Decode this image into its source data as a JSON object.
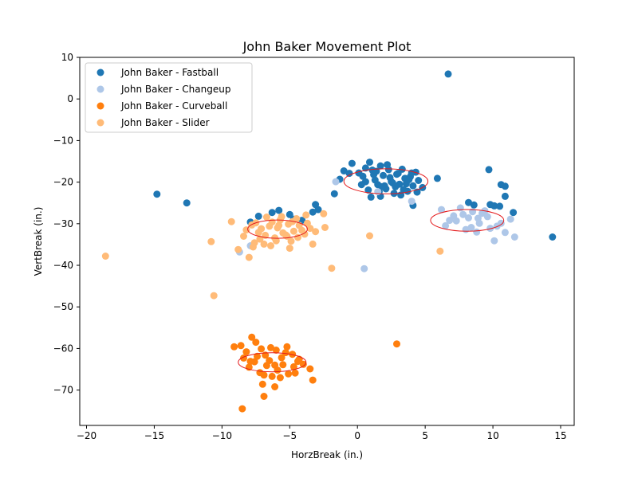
{
  "chart_data": {
    "type": "scatter",
    "title": "John Baker Movement Plot",
    "xlabel": "HorzBreak (in.)",
    "ylabel": "VertBreak (in.)",
    "xlim": [
      -20.5,
      16.0
    ],
    "ylim": [
      -78.5,
      10.0
    ],
    "xticks": [
      -20,
      -15,
      -10,
      -5,
      0,
      5,
      10,
      15
    ],
    "yticks": [
      10,
      0,
      -10,
      -20,
      -30,
      -40,
      -50,
      -60,
      -70
    ],
    "grid": false,
    "legend_position": "top-left",
    "ellipse_color": "#e41a1c",
    "series": [
      {
        "name": "John Baker - Fastball",
        "color": "#1f77b4",
        "ellipse": {
          "cx": 2.1,
          "cy": -19.8,
          "rx": 3.1,
          "ry": 3.0
        },
        "points": [
          [
            6.7,
            6.0
          ],
          [
            -14.8,
            -22.9
          ],
          [
            -12.6,
            -25.0
          ],
          [
            14.4,
            -33.2
          ],
          [
            9.7,
            -17.0
          ],
          [
            10.6,
            -20.6
          ],
          [
            10.9,
            -21.0
          ],
          [
            10.9,
            -23.4
          ],
          [
            11.5,
            -27.3
          ],
          [
            10.1,
            -25.7
          ],
          [
            10.5,
            -25.8
          ],
          [
            9.8,
            -25.4
          ],
          [
            8.2,
            -24.9
          ],
          [
            8.6,
            -25.5
          ],
          [
            5.9,
            -19.1
          ],
          [
            4.1,
            -25.6
          ],
          [
            -1.7,
            -22.8
          ],
          [
            -1.3,
            -19.3
          ],
          [
            -1.0,
            -17.3
          ],
          [
            -0.6,
            -17.9
          ],
          [
            -0.4,
            -15.5
          ],
          [
            0.1,
            -17.8
          ],
          [
            0.4,
            -18.6
          ],
          [
            0.6,
            -19.9
          ],
          [
            0.9,
            -15.2
          ],
          [
            1.1,
            -17.1
          ],
          [
            1.3,
            -19.5
          ],
          [
            1.5,
            -20.6
          ],
          [
            1.7,
            -16.1
          ],
          [
            1.9,
            -18.4
          ],
          [
            2.1,
            -21.6
          ],
          [
            2.3,
            -17.0
          ],
          [
            2.5,
            -19.9
          ],
          [
            2.7,
            -22.7
          ],
          [
            2.9,
            -18.1
          ],
          [
            3.1,
            -20.5
          ],
          [
            3.3,
            -16.9
          ],
          [
            3.5,
            -19.1
          ],
          [
            3.7,
            -22.2
          ],
          [
            3.9,
            -18.7
          ],
          [
            4.1,
            -20.9
          ],
          [
            4.3,
            -17.6
          ],
          [
            4.5,
            -19.6
          ],
          [
            4.8,
            -21.3
          ],
          [
            0.3,
            -20.6
          ],
          [
            0.8,
            -21.9
          ],
          [
            1.2,
            -18.2
          ],
          [
            1.6,
            -22.3
          ],
          [
            2.0,
            -20.9
          ],
          [
            2.4,
            -18.9
          ],
          [
            2.8,
            -21.1
          ],
          [
            3.2,
            -23.1
          ],
          [
            3.6,
            -20.4
          ],
          [
            4.0,
            -17.8
          ],
          [
            0.6,
            -16.6
          ],
          [
            1.0,
            -23.6
          ],
          [
            1.4,
            -17.4
          ],
          [
            1.8,
            -21.1
          ],
          [
            2.2,
            -15.8
          ],
          [
            2.6,
            -20.2
          ],
          [
            3.0,
            -17.9
          ],
          [
            3.4,
            -21.8
          ],
          [
            3.8,
            -19.4
          ],
          [
            4.4,
            -22.4
          ],
          [
            1.7,
            -23.4
          ],
          [
            -6.3,
            -27.3
          ],
          [
            -5.8,
            -26.8
          ],
          [
            -3.1,
            -25.4
          ],
          [
            -2.9,
            -26.6
          ],
          [
            -7.9,
            -29.6
          ],
          [
            -4.1,
            -29.2
          ],
          [
            -3.3,
            -27.2
          ],
          [
            -5.0,
            -27.8
          ],
          [
            -7.3,
            -28.2
          ],
          [
            -4.7,
            -28.9
          ]
        ]
      },
      {
        "name": "John Baker - Changeup",
        "color": "#aec7e8",
        "ellipse": {
          "cx": 8.1,
          "cy": -29.2,
          "rx": 2.7,
          "ry": 2.6
        },
        "points": [
          [
            11.6,
            -33.2
          ],
          [
            10.1,
            -34.1
          ],
          [
            10.9,
            -32.1
          ],
          [
            11.3,
            -28.9
          ],
          [
            6.2,
            -26.6
          ],
          [
            6.5,
            -30.5
          ],
          [
            7.1,
            -28.1
          ],
          [
            7.6,
            -26.2
          ],
          [
            8.0,
            -31.4
          ],
          [
            8.5,
            -27.1
          ],
          [
            9.0,
            -29.9
          ],
          [
            9.4,
            -26.9
          ],
          [
            9.8,
            -31.1
          ],
          [
            8.2,
            -28.6
          ],
          [
            7.3,
            -29.3
          ],
          [
            8.8,
            -32.0
          ],
          [
            9.6,
            -28.3
          ],
          [
            10.3,
            -30.6
          ],
          [
            7.8,
            -27.8
          ],
          [
            8.4,
            -30.9
          ],
          [
            9.2,
            -27.5
          ],
          [
            6.8,
            -29.2
          ],
          [
            10.6,
            -29.9
          ],
          [
            8.9,
            -28.7
          ],
          [
            1.5,
            -22.3
          ],
          [
            4.0,
            -24.6
          ],
          [
            -1.6,
            -19.9
          ],
          [
            0.5,
            -40.8
          ],
          [
            -8.7,
            -36.8
          ],
          [
            -7.9,
            -35.3
          ]
        ]
      },
      {
        "name": "John Baker - Curveball",
        "color": "#ff7f0e",
        "ellipse": {
          "cx": -6.3,
          "cy": -63.3,
          "rx": 2.5,
          "ry": 2.3
        },
        "points": [
          [
            2.9,
            -58.9
          ],
          [
            -8.5,
            -74.5
          ],
          [
            -6.9,
            -71.5
          ],
          [
            -3.3,
            -67.6
          ],
          [
            -6.1,
            -69.2
          ],
          [
            -7.0,
            -68.6
          ],
          [
            -9.1,
            -59.6
          ],
          [
            -8.6,
            -59.3
          ],
          [
            -8.2,
            -60.8
          ],
          [
            -7.8,
            -57.3
          ],
          [
            -7.5,
            -58.5
          ],
          [
            -7.1,
            -60.1
          ],
          [
            -6.8,
            -61.6
          ],
          [
            -6.4,
            -59.8
          ],
          [
            -6.0,
            -60.4
          ],
          [
            -5.6,
            -62.2
          ],
          [
            -5.2,
            -59.6
          ],
          [
            -4.8,
            -61.4
          ],
          [
            -4.4,
            -63.1
          ],
          [
            -4.0,
            -63.8
          ],
          [
            -3.5,
            -64.9
          ],
          [
            -8.4,
            -62.3
          ],
          [
            -8.0,
            -64.5
          ],
          [
            -7.6,
            -63.2
          ],
          [
            -7.2,
            -65.8
          ],
          [
            -6.7,
            -64.1
          ],
          [
            -6.3,
            -66.7
          ],
          [
            -5.9,
            -65.2
          ],
          [
            -5.5,
            -63.9
          ],
          [
            -5.1,
            -66.1
          ],
          [
            -4.7,
            -64.4
          ],
          [
            -6.5,
            -62.9
          ],
          [
            -7.4,
            -61.9
          ],
          [
            -5.3,
            -61.0
          ],
          [
            -6.1,
            -64.0
          ],
          [
            -7.9,
            -63.1
          ],
          [
            -4.6,
            -65.9
          ],
          [
            -6.9,
            -66.4
          ],
          [
            -5.7,
            -67.0
          ],
          [
            -4.3,
            -62.6
          ]
        ]
      },
      {
        "name": "John Baker - Slider",
        "color": "#ffbb78",
        "ellipse": {
          "cx": -5.9,
          "cy": -31.3,
          "rx": 2.2,
          "ry": 2.2
        },
        "points": [
          [
            -18.6,
            -37.8
          ],
          [
            -10.6,
            -47.3
          ],
          [
            -10.8,
            -34.3
          ],
          [
            -9.3,
            -29.5
          ],
          [
            -8.8,
            -36.2
          ],
          [
            -8.4,
            -33.0
          ],
          [
            -8.0,
            -38.1
          ],
          [
            -7.7,
            -35.6
          ],
          [
            -7.3,
            -32.1
          ],
          [
            -6.9,
            -34.9
          ],
          [
            -6.5,
            -30.6
          ],
          [
            -6.1,
            -33.4
          ],
          [
            -5.7,
            -29.1
          ],
          [
            -5.3,
            -32.7
          ],
          [
            -4.9,
            -34.2
          ],
          [
            -4.5,
            -28.8
          ],
          [
            -4.1,
            -31.6
          ],
          [
            -3.7,
            -29.9
          ],
          [
            -3.3,
            -34.9
          ],
          [
            -5.0,
            -35.9
          ],
          [
            -2.5,
            -27.6
          ],
          [
            -2.4,
            -30.9
          ],
          [
            -1.9,
            -40.7
          ],
          [
            0.9,
            -32.9
          ],
          [
            6.1,
            -36.6
          ],
          [
            -7.5,
            -29.8
          ],
          [
            -7.1,
            -31.2
          ],
          [
            -6.7,
            -28.4
          ],
          [
            -6.3,
            -29.6
          ],
          [
            -5.9,
            -31.0
          ],
          [
            -5.5,
            -32.2
          ],
          [
            -5.1,
            -30.1
          ],
          [
            -4.7,
            -31.8
          ],
          [
            -4.3,
            -30.4
          ],
          [
            -3.9,
            -32.5
          ],
          [
            -3.5,
            -31.1
          ],
          [
            -8.2,
            -31.5
          ],
          [
            -7.8,
            -30.3
          ],
          [
            -6.8,
            -32.8
          ],
          [
            -6.0,
            -34.1
          ],
          [
            -5.6,
            -28.3
          ],
          [
            -4.4,
            -33.3
          ],
          [
            -3.8,
            -27.9
          ],
          [
            -3.1,
            -31.9
          ],
          [
            -7.2,
            -33.7
          ],
          [
            -6.4,
            -35.3
          ],
          [
            -5.8,
            -30.4
          ],
          [
            -5.2,
            -33.0
          ],
          [
            -4.8,
            -29.5
          ],
          [
            -7.6,
            -34.6
          ]
        ]
      }
    ]
  }
}
